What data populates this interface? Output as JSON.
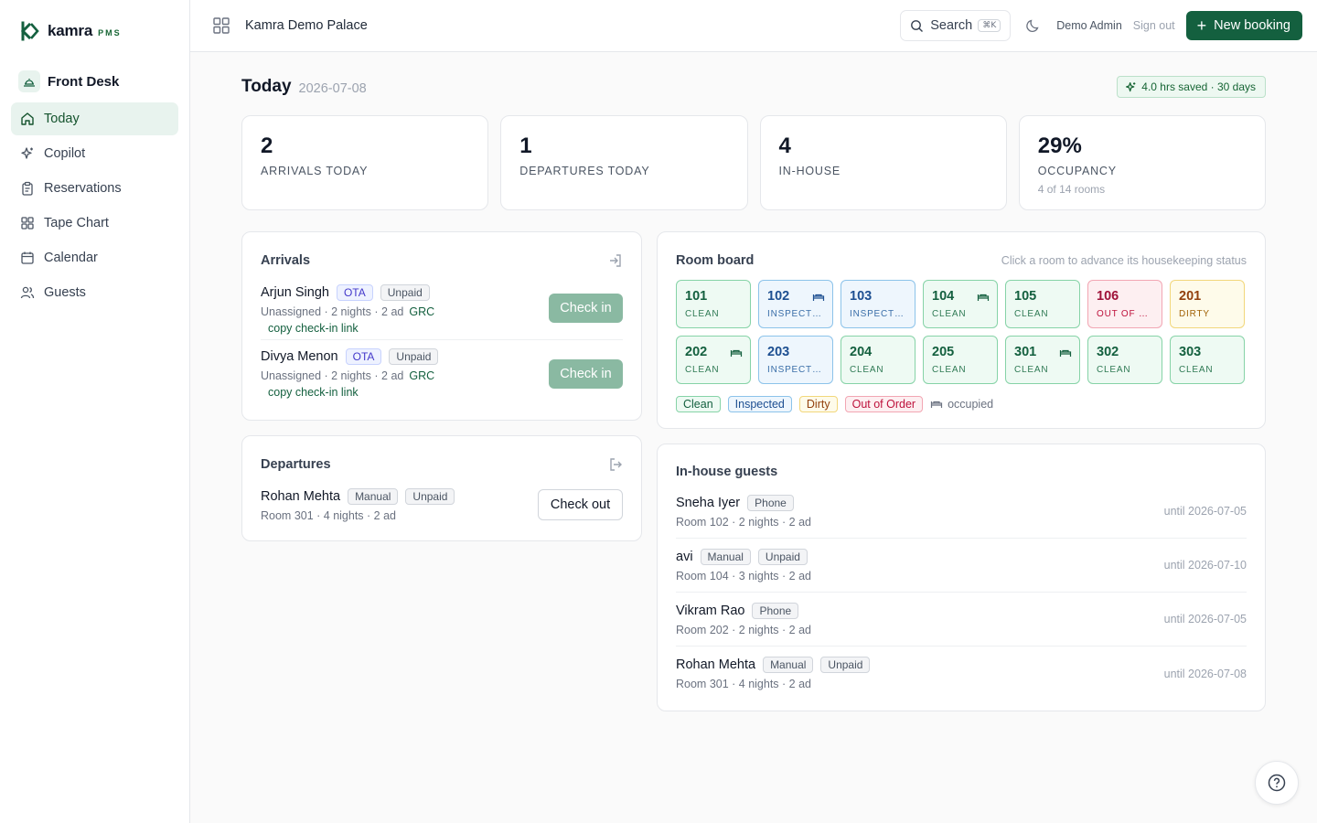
{
  "brand": {
    "name": "kamra",
    "suffix": "PMS"
  },
  "sidebar": {
    "section": "Front Desk",
    "items": [
      {
        "label": "Today",
        "icon": "home-icon",
        "active": true
      },
      {
        "label": "Copilot",
        "icon": "sparkle-icon"
      },
      {
        "label": "Reservations",
        "icon": "clipboard-icon"
      },
      {
        "label": "Tape Chart",
        "icon": "grid-icon"
      },
      {
        "label": "Calendar",
        "icon": "calendar-icon"
      },
      {
        "label": "Guests",
        "icon": "users-icon"
      }
    ]
  },
  "topbar": {
    "property": "Kamra Demo Palace",
    "search_label": "Search",
    "search_shortcut": "⌘K",
    "user": "Demo Admin",
    "signout": "Sign out",
    "new_booking": "New booking"
  },
  "page": {
    "title": "Today",
    "date": "2026-07-08",
    "saved": "4.0 hrs saved · 30 days"
  },
  "stats": [
    {
      "value": "2",
      "label": "ARRIVALS TODAY",
      "sub": ""
    },
    {
      "value": "1",
      "label": "DEPARTURES TODAY",
      "sub": ""
    },
    {
      "value": "4",
      "label": "IN-HOUSE",
      "sub": ""
    },
    {
      "value": "29%",
      "label": "OCCUPANCY",
      "sub": "4 of 14 rooms"
    }
  ],
  "arrivals": {
    "title": "Arrivals",
    "items": [
      {
        "name": "Arjun Singh",
        "source": "OTA",
        "payment": "Unpaid",
        "meta": "Unassigned · 2 nights · 2 ad",
        "grc": "GRC",
        "link": "copy check-in link",
        "action": "Check in"
      },
      {
        "name": "Divya Menon",
        "source": "OTA",
        "payment": "Unpaid",
        "meta": "Unassigned · 2 nights · 2 ad",
        "grc": "GRC",
        "link": "copy check-in link",
        "action": "Check in"
      }
    ]
  },
  "departures": {
    "title": "Departures",
    "items": [
      {
        "name": "Rohan Mehta",
        "source": "Manual",
        "payment": "Unpaid",
        "meta": "Room 301 · 4 nights · 2 ad",
        "action": "Check out"
      }
    ]
  },
  "room_board": {
    "title": "Room board",
    "hint": "Click a room to advance its housekeeping status",
    "rooms": [
      {
        "number": "101",
        "status": "CLEAN",
        "kind": "clean",
        "occupied": false
      },
      {
        "number": "102",
        "status": "INSPECTED",
        "kind": "inspected",
        "occupied": true
      },
      {
        "number": "103",
        "status": "INSPECTED",
        "kind": "inspected",
        "occupied": false
      },
      {
        "number": "104",
        "status": "CLEAN",
        "kind": "clean",
        "occupied": true
      },
      {
        "number": "105",
        "status": "CLEAN",
        "kind": "clean",
        "occupied": false
      },
      {
        "number": "106",
        "status": "OUT OF ORDER",
        "kind": "ooo",
        "occupied": false
      },
      {
        "number": "201",
        "status": "DIRTY",
        "kind": "dirty",
        "occupied": false
      },
      {
        "number": "202",
        "status": "CLEAN",
        "kind": "clean",
        "occupied": true
      },
      {
        "number": "203",
        "status": "INSPECTED",
        "kind": "inspected",
        "occupied": false
      },
      {
        "number": "204",
        "status": "CLEAN",
        "kind": "clean",
        "occupied": false
      },
      {
        "number": "205",
        "status": "CLEAN",
        "kind": "clean",
        "occupied": false
      },
      {
        "number": "301",
        "status": "CLEAN",
        "kind": "clean",
        "occupied": true
      },
      {
        "number": "302",
        "status": "CLEAN",
        "kind": "clean",
        "occupied": false
      },
      {
        "number": "303",
        "status": "CLEAN",
        "kind": "clean",
        "occupied": false
      }
    ],
    "legend": {
      "clean": "Clean",
      "inspected": "Inspected",
      "dirty": "Dirty",
      "ooo": "Out of Order",
      "occupied": "occupied"
    }
  },
  "in_house": {
    "title": "In-house guests",
    "items": [
      {
        "name": "Sneha Iyer",
        "badges": [
          "Phone"
        ],
        "meta": "Room 102 · 2 nights · 2 ad",
        "until": "until 2026-07-05"
      },
      {
        "name": "avi",
        "badges": [
          "Manual",
          "Unpaid"
        ],
        "meta": "Room 104 · 3 nights · 2 ad",
        "until": "until 2026-07-10"
      },
      {
        "name": "Vikram Rao",
        "badges": [
          "Phone"
        ],
        "meta": "Room 202 · 2 nights · 2 ad",
        "until": "until 2026-07-05"
      },
      {
        "name": "Rohan Mehta",
        "badges": [
          "Manual",
          "Unpaid"
        ],
        "meta": "Room 301 · 4 nights · 2 ad",
        "until": "until 2026-07-08"
      }
    ]
  },
  "colors": {
    "brand": "#14603f",
    "active_bg": "#e8f3ee",
    "checkin_disabled": "#8ab9a2"
  }
}
